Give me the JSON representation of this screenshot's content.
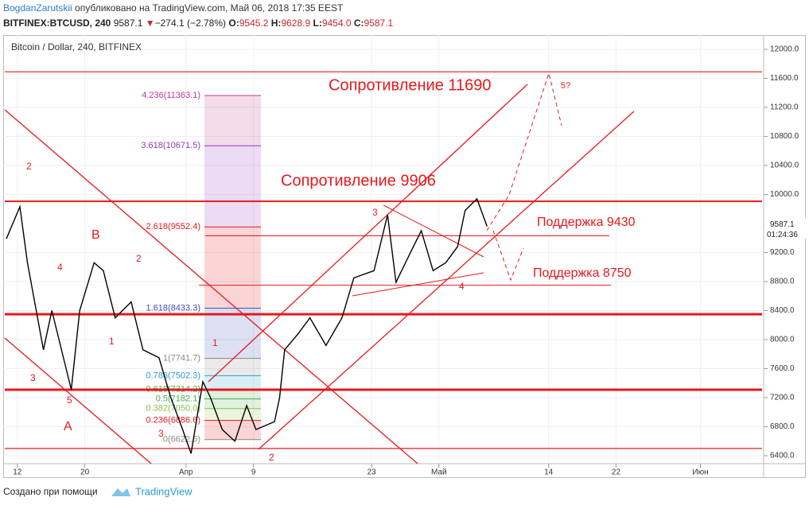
{
  "header": {
    "author": "BogdanZarutskii",
    "published": " опубликовано на TradingView.com, Май 06, 2018 17:35 EEST",
    "symbol": "BITFINEX:BTCUSD, 240",
    "last": "9587.1",
    "change": "−274.1 (−2.78%)",
    "o_label": "O:",
    "o": "9545.2",
    "h_label": "H:",
    "h": "9628.9",
    "l_label": "L:",
    "l": "9454.0",
    "c_label": "C:",
    "c": "9587.1"
  },
  "footer": {
    "text": "Создано при помощи",
    "brand": "TradingView"
  },
  "chart_data": {
    "type": "line",
    "title": "Bitcoin / Dollar, 240, BITFINEX",
    "x": [
      -1.3,
      0.3,
      1.2,
      3.1,
      4.1,
      6.4,
      7.4,
      9.1,
      10.2,
      11.6,
      13.5,
      14.9,
      16.8,
      18.2,
      19.6,
      20.6,
      22.0,
      22.9,
      24.3,
      25.8,
      27.2,
      28.3,
      30.5,
      31.1,
      31.7,
      33.3,
      34.7,
      36.6,
      38.5,
      39.9,
      42.3,
      43.9,
      44.9,
      46.5,
      47.9,
      49.3,
      50.8,
      52.2,
      53.1,
      54.5,
      55.7
    ],
    "series": [
      {
        "name": "BTCUSD",
        "color": "#000000",
        "values": [
          9390,
          9830,
          9060,
          7860,
          8400,
          7310,
          8400,
          9060,
          8950,
          8300,
          8520,
          7860,
          7750,
          7200,
          6760,
          6430,
          7420,
          7200,
          6760,
          6600,
          7090,
          6760,
          6870,
          7200,
          7860,
          8080,
          8300,
          7920,
          8300,
          8850,
          8950,
          9720,
          8790,
          9170,
          9500,
          8950,
          9060,
          9280,
          9780,
          9940,
          9560
        ]
      }
    ],
    "xlim": [
      -1.3,
      88.5
    ],
    "ylim": [
      6400,
      12000
    ],
    "xticks": [
      {
        "value": 0,
        "label": "12"
      },
      {
        "value": 8,
        "label": "20"
      },
      {
        "value": 20,
        "label": "Апр"
      },
      {
        "value": 28,
        "label": "9"
      },
      {
        "value": 42,
        "label": "23"
      },
      {
        "value": 50,
        "label": "Май"
      },
      {
        "value": 63,
        "label": "14"
      },
      {
        "value": 71,
        "label": "22"
      },
      {
        "value": 81,
        "label": "Июн"
      }
    ],
    "yticks": [
      {
        "value": 6400,
        "label": "6400.0"
      },
      {
        "value": 6800,
        "label": "6800.0"
      },
      {
        "value": 7200,
        "label": "7200.0"
      },
      {
        "value": 7600,
        "label": "7600.0"
      },
      {
        "value": 8000,
        "label": "8000.0"
      },
      {
        "value": 8400,
        "label": "8400.0"
      },
      {
        "value": 8800,
        "label": "8800.0"
      },
      {
        "value": 9200,
        "label": "9200.0"
      },
      {
        "value": 10000,
        "label": "10000.0"
      },
      {
        "value": 10400,
        "label": "10400.0"
      },
      {
        "value": 10800,
        "label": "10800.0"
      },
      {
        "value": 11200,
        "label": "11200.0"
      },
      {
        "value": 11600,
        "label": "11600.0"
      },
      {
        "value": 12000,
        "label": "12000.0"
      }
    ],
    "grid": true,
    "level_color": "#e8181c",
    "last_price": 9587.1,
    "countdown": "01:24:36",
    "levels": [
      11690,
      9906,
      8350,
      7310,
      6500
    ],
    "support_levels": [
      9430,
      8750
    ],
    "fib": [
      {
        "value": 11363.1,
        "label": "4.236(11363.1)",
        "color": "#c2398f"
      },
      {
        "value": 10671.5,
        "label": "3.618(10671.5)",
        "color": "#8f39c2"
      },
      {
        "value": 9552.4,
        "label": "2.618(9552.4)",
        "color": "#e8181c"
      },
      {
        "value": 8433.3,
        "label": "1.618(8433.3)",
        "color": "#3f51b5"
      },
      {
        "value": 7741.7,
        "label": "1(7741.7)",
        "color": "#888888"
      },
      {
        "value": 7502.3,
        "label": "0.786(7502.3)",
        "color": "#2a9bd0"
      },
      {
        "value": 7314.2,
        "label": "0.618(7314.2)",
        "color": "#4caf50"
      },
      {
        "value": 7182.1,
        "label": "0.5(7182.1)",
        "color": "#4caf50"
      },
      {
        "value": 7050.0,
        "label": "0.382(7050.0)",
        "color": "#8bc34a"
      },
      {
        "value": 6886.6,
        "label": "0.236(6886.6)",
        "color": "#e8181c"
      },
      {
        "value": 6622.5,
        "label": "0(6622.5)",
        "color": "#888888"
      }
    ],
    "annotations": [
      "Сопротивление 11690",
      "Сопротивление 9906",
      "Поддержка 9430",
      "Поддержка 8750",
      "5?",
      "2",
      "B",
      "4",
      "2",
      "1",
      "1",
      "3",
      "5",
      "A",
      "3",
      "2",
      "3",
      "4"
    ]
  }
}
